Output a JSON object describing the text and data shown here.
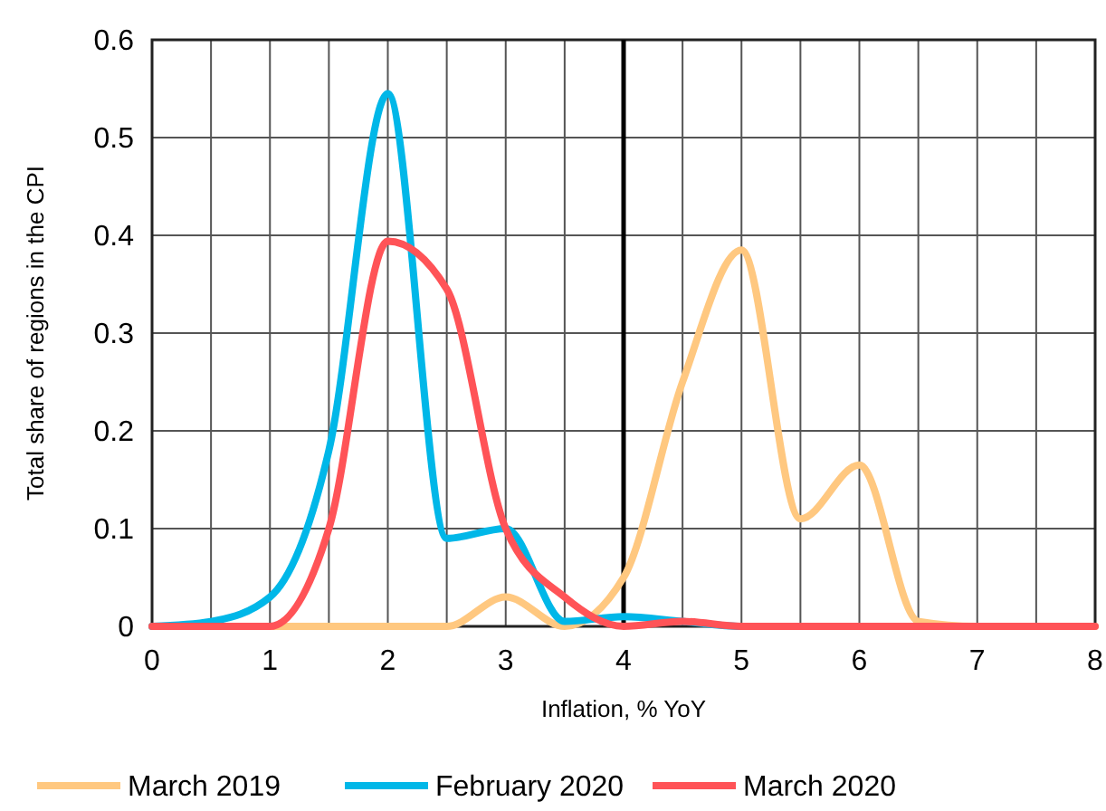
{
  "chart_data": {
    "type": "line",
    "xlabel": "Inflation, % YoY",
    "ylabel": "Total share of regions in the CPI",
    "x": [
      0,
      0.5,
      1,
      1.5,
      2,
      2.5,
      3,
      3.5,
      4,
      4.5,
      5,
      5.5,
      6,
      6.5,
      7,
      7.5,
      8
    ],
    "series": [
      {
        "name": "March 2019",
        "color": "#ffc880",
        "values": [
          0,
          0,
          0,
          0,
          0,
          0,
          0.03,
          0,
          0.05,
          0.25,
          0.385,
          0.11,
          0.165,
          0.005,
          0,
          0,
          0
        ]
      },
      {
        "name": "February 2020",
        "color": "#00b7e8",
        "values": [
          0,
          0.005,
          0.03,
          0.18,
          0.545,
          0.09,
          0.1,
          0.005,
          0.01,
          0.005,
          0,
          0,
          null,
          null,
          null,
          null,
          null
        ]
      },
      {
        "name": "March 2020",
        "color": "#ff5357",
        "values": [
          0,
          0,
          0,
          0.1,
          0.394,
          0.345,
          0.1,
          0.03,
          0,
          0.005,
          0,
          0,
          0,
          0,
          0,
          0,
          0
        ]
      }
    ],
    "xlim": [
      0,
      8
    ],
    "xticks": [
      0,
      {
        "value": 0.5,
        "label": null
      },
      1,
      {
        "value": 1.5,
        "label": null
      },
      2,
      {
        "value": 2.5,
        "label": null
      },
      3,
      {
        "value": 3.5,
        "label": null
      },
      4,
      {
        "value": 4.5,
        "label": null
      },
      5,
      {
        "value": 5.5,
        "label": null
      },
      6,
      {
        "value": 6.5,
        "label": null
      },
      7,
      {
        "value": 7.5,
        "label": null
      },
      8
    ],
    "ylim": [
      0,
      0.6
    ],
    "yticks": [
      0,
      0.1,
      0.2,
      0.3,
      0.4,
      0.5,
      0.6
    ],
    "ref_lines": [
      {
        "axis": "x",
        "value": 4,
        "label": null,
        "color": "#000000"
      }
    ],
    "grid": true,
    "legend": "bottom"
  }
}
